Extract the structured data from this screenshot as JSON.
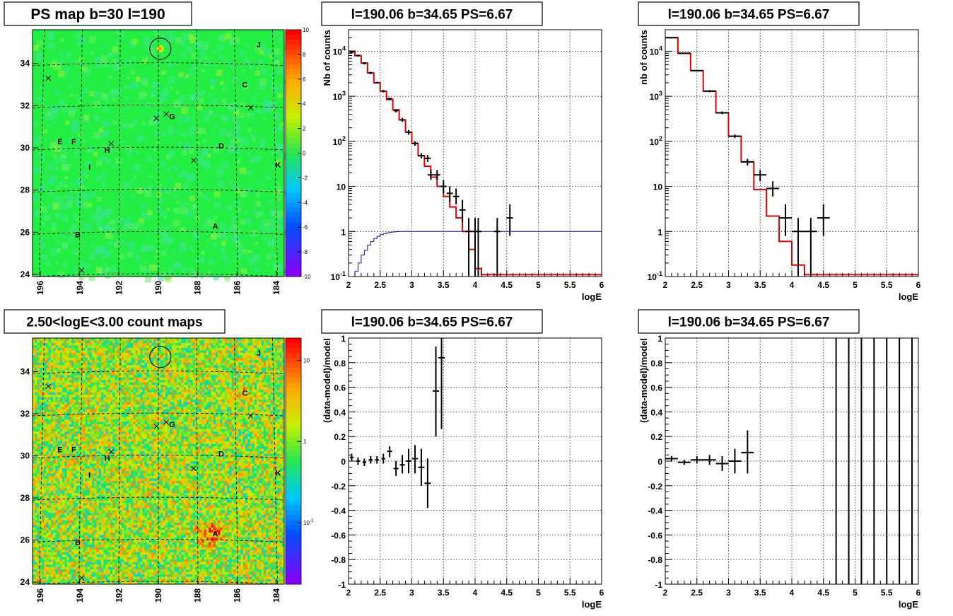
{
  "chart_data": [
    {
      "type": "heatmap",
      "title": "PS map b=30 l=190",
      "x_ticks": [
        "196",
        "194",
        "192",
        "190",
        "188",
        "186",
        "184"
      ],
      "y_ticks": [
        "24",
        "26",
        "28",
        "30",
        "32",
        "34"
      ],
      "z_ticks": [
        "10",
        "8",
        "6",
        "4",
        "2",
        "0",
        "-2",
        "-4",
        "-6",
        "-8",
        "-10"
      ],
      "zlim": [
        -10,
        10
      ],
      "colormap": "rainbow",
      "base_color": "#22ee44",
      "grid": true,
      "sources": [
        {
          "label": "J",
          "l": 184.9,
          "b": 34.9
        },
        {
          "label": "C",
          "l": 185.6,
          "b": 33.0
        },
        {
          "label": "G",
          "l": 189.3,
          "b": 31.5
        },
        {
          "label": "D",
          "l": 186.8,
          "b": 30.1
        },
        {
          "label": "E",
          "l": 195.0,
          "b": 30.3
        },
        {
          "label": "F",
          "l": 194.3,
          "b": 30.3
        },
        {
          "label": "H",
          "l": 192.6,
          "b": 29.9
        },
        {
          "label": "I",
          "l": 193.5,
          "b": 29.1
        },
        {
          "label": "K",
          "l": 183.9,
          "b": 29.2
        },
        {
          "label": "A",
          "l": 187.1,
          "b": 26.3
        },
        {
          "label": "B",
          "l": 194.1,
          "b": 25.9
        }
      ],
      "crosses": [
        {
          "l": 195.6,
          "b": 33.3
        },
        {
          "l": 185.3,
          "b": 31.9
        },
        {
          "l": 190.1,
          "b": 31.4
        },
        {
          "l": 189.6,
          "b": 31.6
        },
        {
          "l": 192.4,
          "b": 30.2
        },
        {
          "l": 188.2,
          "b": 29.4
        },
        {
          "l": 193.9,
          "b": 24.2
        }
      ],
      "circle": {
        "l": 189.9,
        "b": 34.7
      }
    },
    {
      "type": "line",
      "title": "l=190.06 b=34.65 PS=6.67",
      "xlabel": "logE",
      "ylabel": "Nb of counts",
      "xlim": [
        2,
        6
      ],
      "ylim": [
        0.1,
        30000
      ],
      "log_y": true,
      "x_ticks": [
        "2",
        "2.5",
        "3",
        "3.5",
        "4",
        "4.5",
        "5",
        "5.5",
        "6"
      ],
      "y_ticks": [
        "10^-1",
        "1",
        "10",
        "10^2",
        "10^3",
        "10^4"
      ],
      "series": [
        {
          "color": "#e00000",
          "style": "step",
          "bin_edges": [
            2,
            2.1,
            2.2,
            2.3,
            2.4,
            2.5,
            2.6,
            2.7,
            2.8,
            2.9,
            3.0,
            3.1,
            3.2,
            3.3,
            3.4,
            3.5,
            3.6,
            3.7,
            3.8,
            3.9,
            4.0,
            4.1,
            6.0
          ],
          "values": [
            10000,
            8000,
            5500,
            3300,
            2000,
            1300,
            850,
            500,
            300,
            160,
            90,
            48,
            28,
            16,
            10,
            6,
            3.5,
            2.0,
            1.0,
            0.4,
            0.15,
            0.11
          ]
        },
        {
          "color": "#1010c0",
          "style": "step",
          "bin_edges": [
            2,
            2.05,
            2.1,
            2.15,
            2.2,
            2.25,
            2.3,
            2.35,
            2.4,
            2.45,
            2.5,
            2.55,
            2.6,
            2.65,
            2.7,
            2.75,
            2.8,
            2.9,
            6.0
          ],
          "values": [
            0.08,
            0.1,
            0.13,
            0.2,
            0.3,
            0.38,
            0.5,
            0.6,
            0.7,
            0.78,
            0.85,
            0.9,
            0.93,
            0.96,
            0.98,
            0.99,
            1.0,
            1.0
          ]
        }
      ],
      "points": [
        {
          "x": 2.05,
          "y": 9400,
          "xerr": 0.03,
          "ylo": 9000,
          "yhi": 9800
        },
        {
          "x": 2.15,
          "y": 8000,
          "xerr": 0.03,
          "ylo": 7600,
          "yhi": 8400
        },
        {
          "x": 2.25,
          "y": 5400,
          "xerr": 0.03,
          "ylo": 5100,
          "yhi": 5700
        },
        {
          "x": 2.35,
          "y": 3300,
          "xerr": 0.03,
          "ylo": 3100,
          "yhi": 3500
        },
        {
          "x": 2.45,
          "y": 2000,
          "xerr": 0.03,
          "ylo": 1900,
          "yhi": 2100
        },
        {
          "x": 2.55,
          "y": 1300,
          "xerr": 0.03,
          "ylo": 1220,
          "yhi": 1380
        },
        {
          "x": 2.65,
          "y": 880,
          "xerr": 0.04,
          "ylo": 820,
          "yhi": 940
        },
        {
          "x": 2.75,
          "y": 480,
          "xerr": 0.04,
          "ylo": 440,
          "yhi": 520
        },
        {
          "x": 2.85,
          "y": 300,
          "xerr": 0.04,
          "ylo": 270,
          "yhi": 330
        },
        {
          "x": 2.95,
          "y": 160,
          "xerr": 0.04,
          "ylo": 140,
          "yhi": 180
        },
        {
          "x": 3.05,
          "y": 90,
          "xerr": 0.05,
          "ylo": 80,
          "yhi": 100
        },
        {
          "x": 3.15,
          "y": 48,
          "xerr": 0.05,
          "ylo": 42,
          "yhi": 55
        },
        {
          "x": 3.25,
          "y": 42,
          "xerr": 0.05,
          "ylo": 35,
          "yhi": 50
        },
        {
          "x": 3.3,
          "y": 18,
          "xerr": 0.05,
          "ylo": 14,
          "yhi": 23
        },
        {
          "x": 3.4,
          "y": 18,
          "xerr": 0.05,
          "ylo": 14,
          "yhi": 23
        },
        {
          "x": 3.5,
          "y": 10,
          "xerr": 0.05,
          "ylo": 7,
          "yhi": 14
        },
        {
          "x": 3.6,
          "y": 7,
          "xerr": 0.05,
          "ylo": 4.5,
          "yhi": 10
        },
        {
          "x": 3.7,
          "y": 6,
          "xerr": 0.05,
          "ylo": 4,
          "yhi": 9
        },
        {
          "x": 3.8,
          "y": 3,
          "xerr": 0.05,
          "ylo": 1.6,
          "yhi": 5
        },
        {
          "x": 3.9,
          "y": 1,
          "xerr": 0.05,
          "ylo": 0.1,
          "yhi": 2
        },
        {
          "x": 4.0,
          "y": 1,
          "xerr": 0.05,
          "ylo": 0.1,
          "yhi": 2
        },
        {
          "x": 4.05,
          "y": 1,
          "xerr": 0.05,
          "ylo": 0.1,
          "yhi": 2
        },
        {
          "x": 4.35,
          "y": 1,
          "xerr": 0.05,
          "ylo": 0.1,
          "yhi": 2
        },
        {
          "x": 4.55,
          "y": 2,
          "xerr": 0.05,
          "ylo": 0.8,
          "yhi": 4
        }
      ]
    },
    {
      "type": "line",
      "title": "l=190.06 b=34.65 PS=6.67",
      "xlabel": "logE",
      "ylabel": "nb of counts",
      "xlim": [
        2,
        6
      ],
      "ylim": [
        0.1,
        30000
      ],
      "log_y": true,
      "x_ticks": [
        "2",
        "2.5",
        "3",
        "3.5",
        "4",
        "4.5",
        "5",
        "5.5",
        "6"
      ],
      "y_ticks": [
        "10^-1",
        "1",
        "10",
        "10^2",
        "10^3",
        "10^4"
      ],
      "series": [
        {
          "color": "#e00000",
          "style": "step",
          "bin_edges": [
            2,
            2.2,
            2.4,
            2.6,
            2.8,
            3.0,
            3.2,
            3.4,
            3.6,
            3.8,
            4.0,
            4.2,
            6.0
          ],
          "values": [
            20000,
            9000,
            3700,
            1300,
            430,
            130,
            35,
            8.5,
            2.2,
            0.6,
            0.18,
            0.11
          ]
        }
      ],
      "points": [
        {
          "x": 2.1,
          "y": 20000,
          "xerr": 0.1,
          "ylo": 19500,
          "yhi": 20500
        },
        {
          "x": 2.3,
          "y": 9000,
          "xerr": 0.1,
          "ylo": 8700,
          "yhi": 9300
        },
        {
          "x": 2.5,
          "y": 3700,
          "xerr": 0.1,
          "ylo": 3550,
          "yhi": 3850
        },
        {
          "x": 2.7,
          "y": 1300,
          "xerr": 0.1,
          "ylo": 1230,
          "yhi": 1370
        },
        {
          "x": 2.9,
          "y": 430,
          "xerr": 0.1,
          "ylo": 400,
          "yhi": 460
        },
        {
          "x": 3.1,
          "y": 130,
          "xerr": 0.1,
          "ylo": 118,
          "yhi": 142
        },
        {
          "x": 3.3,
          "y": 35,
          "xerr": 0.1,
          "ylo": 29,
          "yhi": 41
        },
        {
          "x": 3.5,
          "y": 18,
          "xerr": 0.1,
          "ylo": 13,
          "yhi": 23
        },
        {
          "x": 3.7,
          "y": 9,
          "xerr": 0.1,
          "ylo": 6,
          "yhi": 13
        },
        {
          "x": 3.9,
          "y": 2,
          "xerr": 0.1,
          "ylo": 0.8,
          "yhi": 4
        },
        {
          "x": 4.1,
          "y": 1,
          "xerr": 0.1,
          "ylo": 0.1,
          "yhi": 2
        },
        {
          "x": 4.3,
          "y": 1,
          "xerr": 0.1,
          "ylo": 0.1,
          "yhi": 2
        },
        {
          "x": 4.5,
          "y": 2,
          "xerr": 0.1,
          "ylo": 0.8,
          "yhi": 4
        }
      ]
    },
    {
      "type": "heatmap",
      "title": "2.50<logE<3.00 count maps",
      "x_ticks": [
        "196",
        "194",
        "192",
        "190",
        "188",
        "186",
        "184"
      ],
      "y_ticks": [
        "24",
        "26",
        "28",
        "30",
        "32",
        "34"
      ],
      "z_ticks": [
        "10",
        "1",
        "10^-1"
      ],
      "colormap": "rainbow-log",
      "grid": true,
      "sources": [
        {
          "label": "J",
          "l": 184.9,
          "b": 34.9
        },
        {
          "label": "C",
          "l": 185.6,
          "b": 33.0
        },
        {
          "label": "G",
          "l": 189.3,
          "b": 31.5
        },
        {
          "label": "D",
          "l": 186.8,
          "b": 30.1
        },
        {
          "label": "E",
          "l": 195.0,
          "b": 30.3
        },
        {
          "label": "F",
          "l": 194.3,
          "b": 30.3
        },
        {
          "label": "H",
          "l": 192.6,
          "b": 29.9
        },
        {
          "label": "I",
          "l": 193.5,
          "b": 29.1
        },
        {
          "label": "K",
          "l": 183.9,
          "b": 29.2
        },
        {
          "label": "A",
          "l": 187.1,
          "b": 26.3
        },
        {
          "label": "B",
          "l": 194.1,
          "b": 25.9
        }
      ],
      "crosses": [
        {
          "l": 195.6,
          "b": 33.3
        },
        {
          "l": 185.3,
          "b": 31.9
        },
        {
          "l": 190.1,
          "b": 31.4
        },
        {
          "l": 189.6,
          "b": 31.6
        },
        {
          "l": 192.4,
          "b": 30.2
        },
        {
          "l": 188.2,
          "b": 29.4
        },
        {
          "l": 193.9,
          "b": 24.2
        }
      ],
      "circle": {
        "l": 189.9,
        "b": 34.7
      }
    },
    {
      "type": "scatter",
      "title": "l=190.06 b=34.65 PS=6.67",
      "xlabel": "logE",
      "ylabel": "(data-model)/model",
      "xlim": [
        2,
        6
      ],
      "ylim": [
        -1,
        1
      ],
      "x_ticks": [
        "2",
        "2.5",
        "3",
        "3.5",
        "4",
        "4.5",
        "5",
        "5.5",
        "6"
      ],
      "y_ticks": [
        "-1",
        "-0.8",
        "-0.6",
        "-0.4",
        "-0.2",
        "0",
        "0.2",
        "0.4",
        "0.6",
        "0.8",
        "1"
      ],
      "points": [
        {
          "x": 2.05,
          "y": 0.03,
          "xerr": 0.03,
          "ylo": 0.0,
          "yhi": 0.06
        },
        {
          "x": 2.15,
          "y": 0.0,
          "xerr": 0.03,
          "ylo": -0.03,
          "yhi": 0.03
        },
        {
          "x": 2.25,
          "y": -0.01,
          "xerr": 0.03,
          "ylo": -0.04,
          "yhi": 0.02
        },
        {
          "x": 2.35,
          "y": 0.01,
          "xerr": 0.03,
          "ylo": -0.02,
          "yhi": 0.04
        },
        {
          "x": 2.45,
          "y": 0.01,
          "xerr": 0.03,
          "ylo": -0.02,
          "yhi": 0.04
        },
        {
          "x": 2.55,
          "y": 0.02,
          "xerr": 0.03,
          "ylo": -0.02,
          "yhi": 0.06
        },
        {
          "x": 2.65,
          "y": 0.08,
          "xerr": 0.04,
          "ylo": 0.03,
          "yhi": 0.12
        },
        {
          "x": 2.75,
          "y": -0.06,
          "xerr": 0.04,
          "ylo": -0.12,
          "yhi": 0.0
        },
        {
          "x": 2.85,
          "y": -0.03,
          "xerr": 0.04,
          "ylo": -0.1,
          "yhi": 0.05
        },
        {
          "x": 2.95,
          "y": 0.0,
          "xerr": 0.04,
          "ylo": -0.1,
          "yhi": 0.1
        },
        {
          "x": 3.05,
          "y": 0.02,
          "xerr": 0.05,
          "ylo": -0.1,
          "yhi": 0.13
        },
        {
          "x": 3.15,
          "y": -0.05,
          "xerr": 0.05,
          "ylo": -0.2,
          "yhi": 0.1
        },
        {
          "x": 3.25,
          "y": -0.18,
          "xerr": 0.05,
          "ylo": -0.38,
          "yhi": 0.02
        },
        {
          "x": 3.38,
          "y": 0.57,
          "xerr": 0.05,
          "ylo": 0.2,
          "yhi": 0.93
        },
        {
          "x": 3.47,
          "y": 0.84,
          "xerr": 0.05,
          "ylo": 0.26,
          "yhi": 1.0
        }
      ]
    },
    {
      "type": "scatter",
      "title": "l=190.06 b=34.65 PS=6.67",
      "xlabel": "logE",
      "ylabel": "(data-model)/model",
      "xlim": [
        2,
        6
      ],
      "ylim": [
        -1,
        1
      ],
      "x_ticks": [
        "2",
        "2.5",
        "3",
        "3.5",
        "4",
        "4.5",
        "5",
        "5.5",
        "6"
      ],
      "y_ticks": [
        "-1",
        "-0.8",
        "-0.6",
        "-0.4",
        "-0.2",
        "0",
        "0.2",
        "0.4",
        "0.6",
        "0.8",
        "1"
      ],
      "points": [
        {
          "x": 2.1,
          "y": 0.02,
          "xerr": 0.1,
          "ylo": 0.0,
          "yhi": 0.04
        },
        {
          "x": 2.3,
          "y": -0.01,
          "xerr": 0.1,
          "ylo": -0.03,
          "yhi": 0.01
        },
        {
          "x": 2.5,
          "y": 0.01,
          "xerr": 0.1,
          "ylo": -0.02,
          "yhi": 0.04
        },
        {
          "x": 2.7,
          "y": 0.01,
          "xerr": 0.1,
          "ylo": -0.03,
          "yhi": 0.05
        },
        {
          "x": 2.9,
          "y": -0.02,
          "xerr": 0.1,
          "ylo": -0.08,
          "yhi": 0.04
        },
        {
          "x": 3.1,
          "y": 0.0,
          "xerr": 0.1,
          "ylo": -0.1,
          "yhi": 0.1
        },
        {
          "x": 3.3,
          "y": 0.07,
          "xerr": 0.1,
          "ylo": -0.1,
          "yhi": 0.25
        },
        {
          "x": 4.7,
          "y": 0,
          "xerr": 0,
          "ylo": -1,
          "yhi": 1
        },
        {
          "x": 4.9,
          "y": 0,
          "xerr": 0,
          "ylo": -1,
          "yhi": 1
        },
        {
          "x": 5.1,
          "y": 0,
          "xerr": 0,
          "ylo": -1,
          "yhi": 1
        },
        {
          "x": 5.3,
          "y": 0,
          "xerr": 0,
          "ylo": -1,
          "yhi": 1
        },
        {
          "x": 5.5,
          "y": 0,
          "xerr": 0,
          "ylo": -1,
          "yhi": 1
        },
        {
          "x": 5.7,
          "y": 0,
          "xerr": 0,
          "ylo": -1,
          "yhi": 1
        },
        {
          "x": 5.9,
          "y": 0,
          "xerr": 0,
          "ylo": -1,
          "yhi": 1
        }
      ]
    }
  ]
}
